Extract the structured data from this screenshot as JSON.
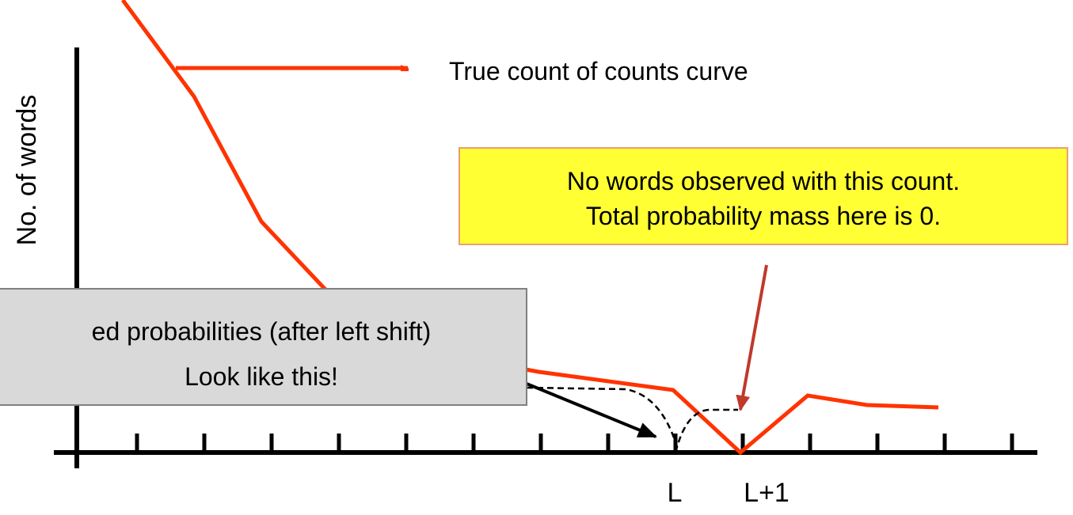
{
  "y_axis_label": "No. of words",
  "curve_label": "True count of counts curve",
  "callout": {
    "lines": [
      "No words observed with this count.",
      "Total probability mass here is 0."
    ]
  },
  "note": {
    "lines": [
      "ed probabilities (after left shift)",
      "Look like this!"
    ]
  },
  "x_labels": [
    "L",
    "L+1"
  ]
}
